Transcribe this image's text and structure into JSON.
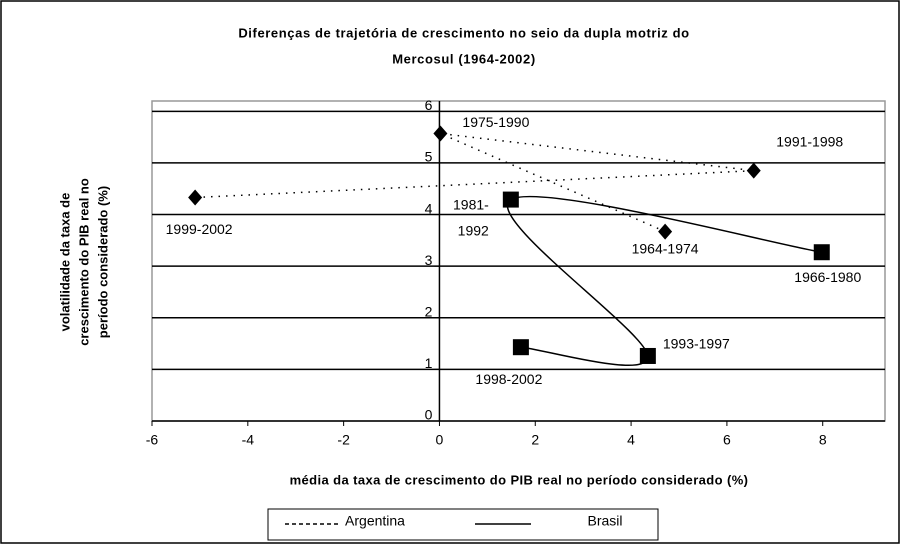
{
  "chart_data": {
    "type": "scatter",
    "title": [
      "Diferenças de trajetória de crescimento no seio da dupla motriz do",
      "Mercosul (1964-2002)"
    ],
    "x_label": "média da taxa de crescimento do PIB real no período considerado (%)",
    "y_label": [
      "volatilidade da taxa de",
      "crescimento do PIB real no",
      "período considerado (%)"
    ],
    "xlim": [
      -6,
      9.3
    ],
    "ylim": [
      0,
      6.2
    ],
    "xticks": [
      -6,
      -4,
      -2,
      0,
      2,
      4,
      6,
      8
    ],
    "yticks": [
      0,
      1,
      2,
      3,
      4,
      5,
      6
    ],
    "grid": true,
    "legend": "bottom",
    "series": [
      {
        "name": "Argentina",
        "color": "#000000",
        "line": "dotted",
        "marker": "diamond",
        "x": [
          4.71,
          0.02,
          6.56,
          -5.1
        ],
        "values": [
          3.67,
          5.57,
          4.85,
          4.33
        ],
        "labels": [
          "1964-1974",
          "1975-1990",
          "1991-1998",
          "1999-2002"
        ]
      },
      {
        "name": "Brasil",
        "color": "#000000",
        "line": "smooth",
        "marker": "square",
        "x": [
          7.98,
          1.49,
          4.35,
          1.7
        ],
        "values": [
          3.27,
          4.29,
          1.26,
          1.43
        ],
        "labels": [
          "1966-1980",
          [
            "1981-",
            "1992"
          ],
          "1993-1997",
          "1998-2002"
        ]
      }
    ]
  }
}
